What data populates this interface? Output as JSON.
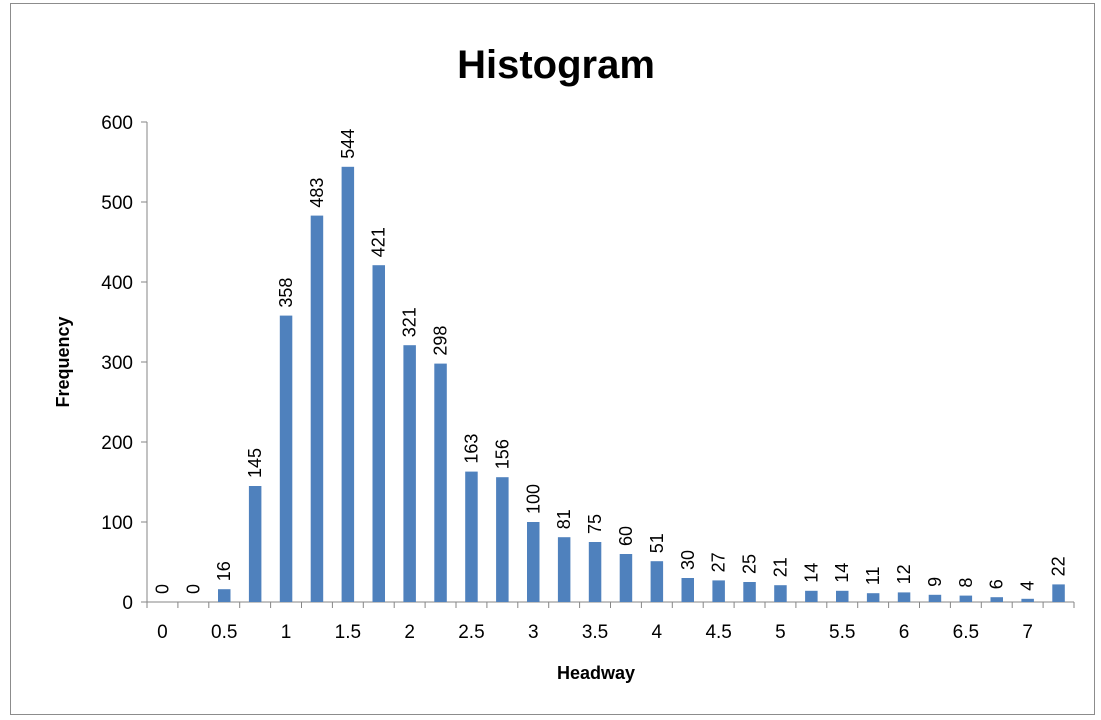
{
  "chart_data": {
    "type": "bar",
    "title": "Histogram",
    "xlabel": "Headway",
    "ylabel": "Frequency",
    "ylim": [
      0,
      600
    ],
    "yticks": [
      "0",
      "100",
      "200",
      "300",
      "400",
      "500",
      "600"
    ],
    "xtick_labels": [
      "0",
      "0.5",
      "1",
      "1.5",
      "2",
      "2.5",
      "3",
      "3.5",
      "4",
      "4.5",
      "5",
      "5.5",
      "6",
      "6.5",
      "7"
    ],
    "grid": false,
    "legend": "none",
    "bar_color": "#4f81bd",
    "categories": [
      "0",
      "0.25",
      "0.5",
      "0.75",
      "1",
      "1.25",
      "1.5",
      "1.75",
      "2",
      "2.25",
      "2.5",
      "2.75",
      "3",
      "3.25",
      "3.5",
      "3.75",
      "4",
      "4.25",
      "4.5",
      "4.75",
      "5",
      "5.25",
      "5.5",
      "5.75",
      "6",
      "6.25",
      "6.5",
      "6.75",
      "7",
      "7.25"
    ],
    "values": [
      0,
      0,
      16,
      145,
      358,
      483,
      544,
      421,
      321,
      298,
      163,
      156,
      100,
      81,
      75,
      60,
      51,
      30,
      27,
      25,
      21,
      14,
      14,
      11,
      12,
      9,
      8,
      6,
      4,
      22
    ]
  }
}
